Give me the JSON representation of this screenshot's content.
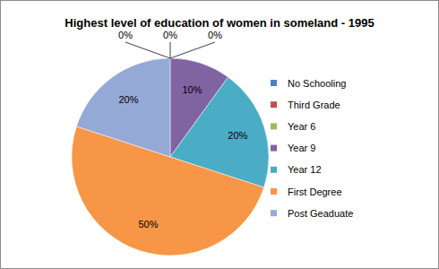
{
  "chart_data": {
    "type": "pie",
    "title": "Highest level of education of women in someland - 1995",
    "categories": [
      "No Schooling",
      "Third Grade",
      "Year 6",
      "Year 9",
      "Year 12",
      "First Degree",
      "Post Geaduate"
    ],
    "values": [
      0,
      0,
      0,
      10,
      20,
      50,
      20
    ],
    "value_labels": [
      "0%",
      "0%",
      "0%",
      "10%",
      "20%",
      "50%",
      "20%"
    ],
    "colors": [
      "#4f81bd",
      "#c0504d",
      "#9bbb59",
      "#8064a2",
      "#4bacc6",
      "#f79646",
      "#95a9d6"
    ],
    "data_labels": true,
    "legend": "right"
  }
}
